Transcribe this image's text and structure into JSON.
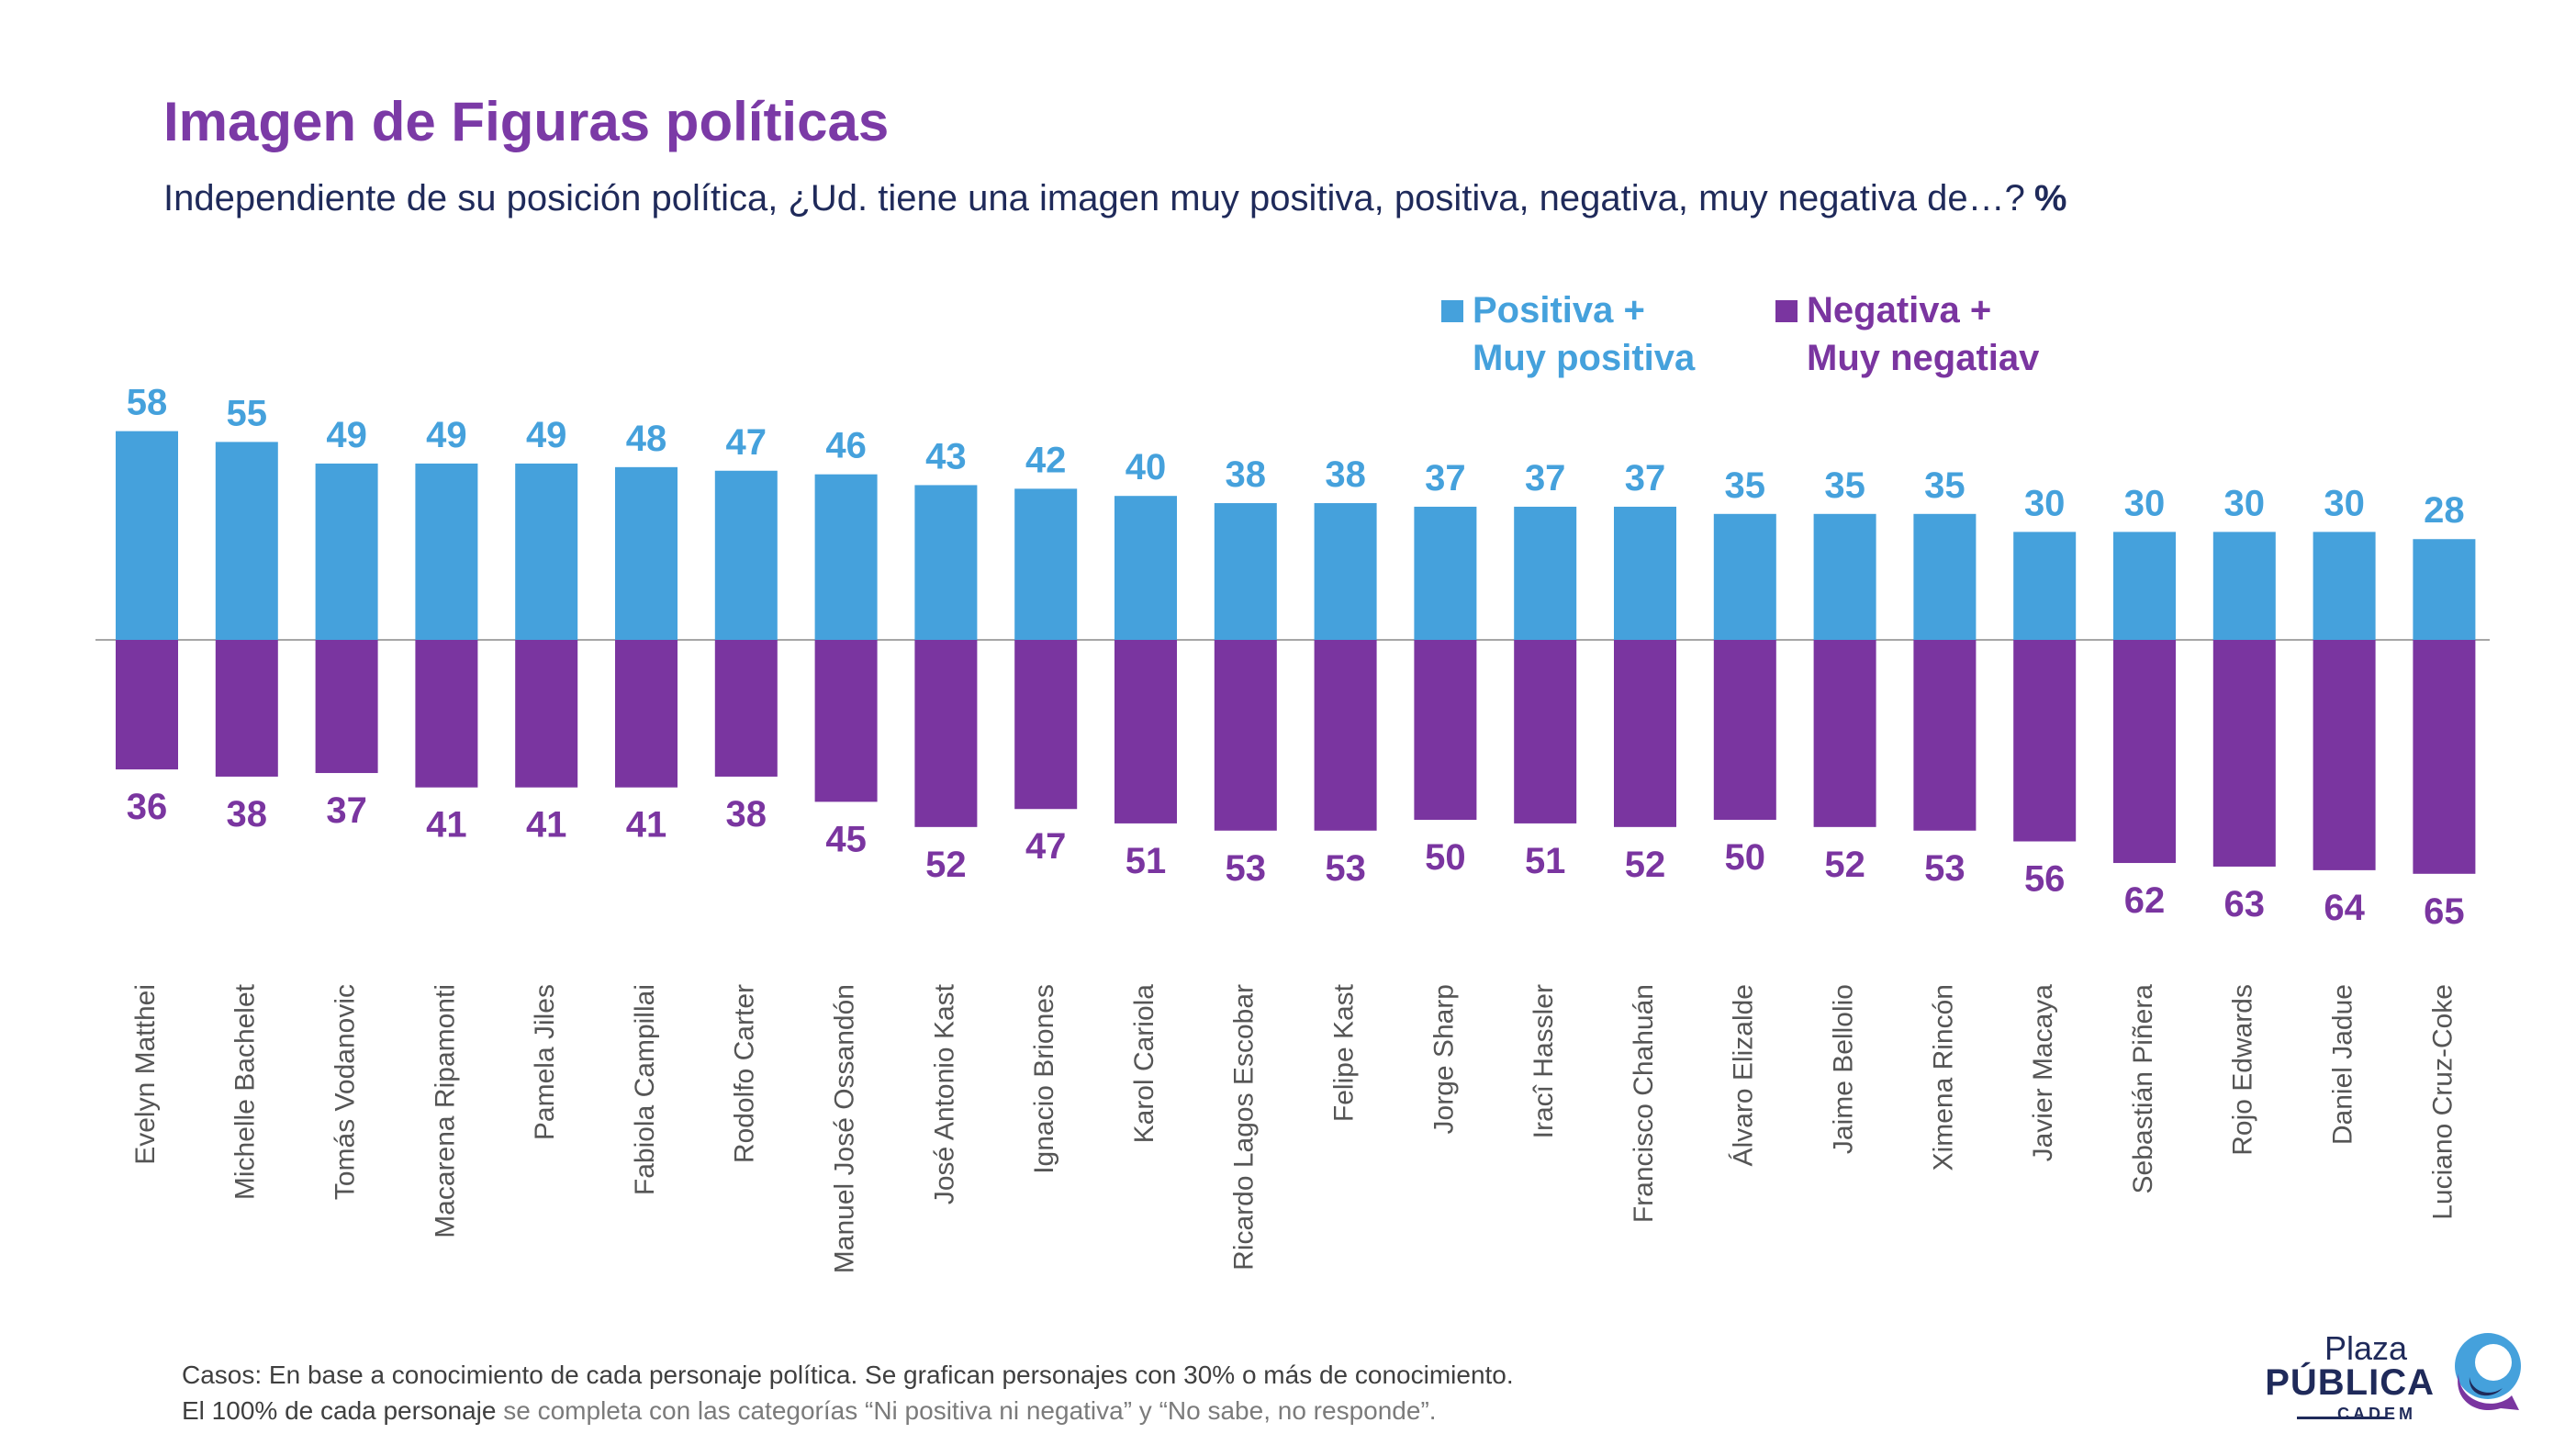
{
  "title": "Imagen de Figuras políticas",
  "subtitle": "Independiente de su posición política, ¿Ud. tiene una imagen muy positiva, positiva, negativa, muy negativa de…?",
  "subtitle_unit": "%",
  "legend": {
    "positive_line1": "Positiva +",
    "positive_line2": "Muy positiva",
    "negative_line1": "Negativa +",
    "negative_line2": "Muy negatiav"
  },
  "colors": {
    "positive": "#45a1dc",
    "negative": "#7a35a0",
    "title": "#7b3aa6",
    "subtitle": "#1f2a5a",
    "axis_label": "#555555",
    "baseline": "#a6a6a6"
  },
  "chart_data": {
    "type": "bar",
    "layout": "diverging",
    "categories": [
      "Evelyn Matthei",
      "Michelle Bachelet",
      "Tomás Vodanovic",
      "Macarena Ripamonti",
      "Pamela Jiles",
      "Fabiola Campillai",
      "Rodolfo Carter",
      "Manuel José Ossandón",
      "José Antonio Kast",
      "Ignacio Briones",
      "Karol Cariola",
      "Ricardo Lagos Escobar",
      "Felipe Kast",
      "Jorge Sharp",
      "Iracî Hassler",
      "Francisco Chahuán",
      "Álvaro Elizalde",
      "Jaime Bellolio",
      "Ximena Rincón",
      "Javier Macaya",
      "Sebastián Piñera",
      "Rojo Edwards",
      "Daniel Jadue",
      "Luciano Cruz-Coke"
    ],
    "series": [
      {
        "name": "Positiva + Muy positiva",
        "values": [
          58,
          55,
          49,
          49,
          49,
          48,
          47,
          46,
          43,
          42,
          40,
          38,
          38,
          37,
          37,
          37,
          35,
          35,
          35,
          30,
          30,
          30,
          30,
          28
        ]
      },
      {
        "name": "Negativa + Muy negatiav",
        "values": [
          36,
          38,
          37,
          41,
          41,
          41,
          38,
          45,
          52,
          47,
          51,
          53,
          53,
          50,
          51,
          52,
          50,
          52,
          53,
          56,
          62,
          63,
          64,
          65
        ]
      }
    ]
  },
  "footnote": {
    "line1_label": "Casos:",
    "line1_text": " En base a conocimiento de cada personaje política. Se grafican personajes con 30% o más de conocimiento.",
    "line2_label": "El 100% de cada personaje",
    "line2_text": " se completa con las categorías “Ni positiva ni negativa” y “No sabe, no responde”."
  },
  "logo": {
    "line1": "Plaza",
    "line2": "PÚBLICA",
    "line3": "CADEM"
  }
}
